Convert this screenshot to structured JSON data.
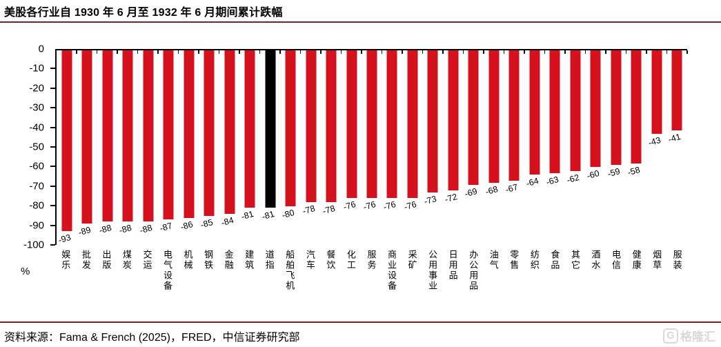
{
  "header": {
    "title": "美股各行业自 1930 年 6 月至 1932 年 6 月期间累计跌幅"
  },
  "chart_data": {
    "type": "bar",
    "title": "美股各行业自 1930 年 6 月至 1932 年 6 月期间累计跌幅",
    "unit": "%",
    "orientation": "vertical-negative",
    "ylim": [
      -100,
      0
    ],
    "yticks": [
      0,
      -10,
      -20,
      -30,
      -40,
      -50,
      -60,
      -70,
      -80,
      -90,
      -100
    ],
    "grid": false,
    "value_labels_shown": true,
    "value_labels_rotation_deg": -16,
    "bar_color": "#d6111e",
    "highlight_color": "#000000",
    "highlight_index": 10,
    "highlight_category": "道指",
    "categories": [
      "娱乐",
      "批发",
      "出版",
      "煤炭",
      "交运",
      "电气设备",
      "机械",
      "钢铁",
      "金融",
      "建筑",
      "道指",
      "船舶飞机",
      "汽车",
      "餐饮",
      "化工",
      "服务",
      "商业设备",
      "采矿",
      "公用事业",
      "日用品",
      "办公用品",
      "油气",
      "零售",
      "纺织",
      "食品",
      "其它",
      "酒水",
      "电信",
      "健康",
      "烟草",
      "服装"
    ],
    "values": [
      -93,
      -89,
      -88,
      -88,
      -88,
      -87,
      -86,
      -85,
      -84,
      -81,
      -81,
      -80,
      -78,
      -78,
      -76,
      -76,
      -76,
      -76,
      -73,
      -72,
      -69,
      -68,
      -67,
      -64,
      -63,
      -62,
      -60,
      -59,
      -58,
      -43,
      -41
    ]
  },
  "footer": {
    "source": "资料来源：Fama & French (2025)，FRED，中信证券研究部",
    "watermark_g": "G",
    "watermark": "格隆汇"
  }
}
